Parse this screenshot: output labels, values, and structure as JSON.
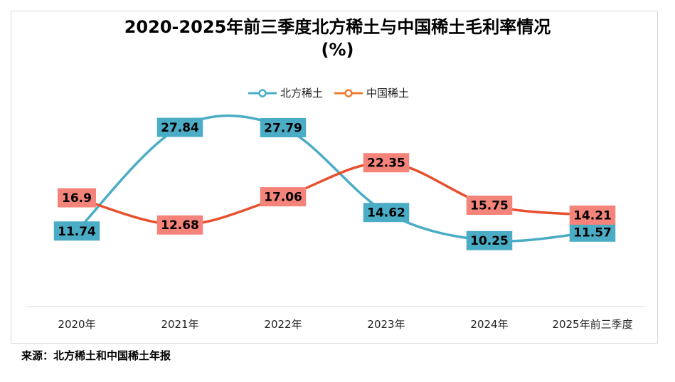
{
  "chart_data": {
    "type": "line",
    "title": "2020-2025年前三季度北方稀土与中国稀土毛利率情况",
    "subtitle": "(%)",
    "categories": [
      "2020年",
      "2021年",
      "2022年",
      "2023年",
      "2024年",
      "2025年前三季度"
    ],
    "series": [
      {
        "name": "北方稀土",
        "color": "#4bacc6",
        "values": [
          11.74,
          27.84,
          27.79,
          14.62,
          10.25,
          11.57
        ],
        "label_bg": "#4bacc6"
      },
      {
        "name": "中国稀土",
        "color": "#e8502d",
        "values": [
          16.9,
          12.68,
          17.06,
          22.35,
          15.75,
          14.21
        ],
        "label_bg": "#f4837a"
      }
    ],
    "ylim": [
      0,
      35
    ],
    "xlabel": "",
    "ylabel": "",
    "legend": "top-center",
    "grid": false
  },
  "source": "来源：北方稀土和中国稀土年报"
}
